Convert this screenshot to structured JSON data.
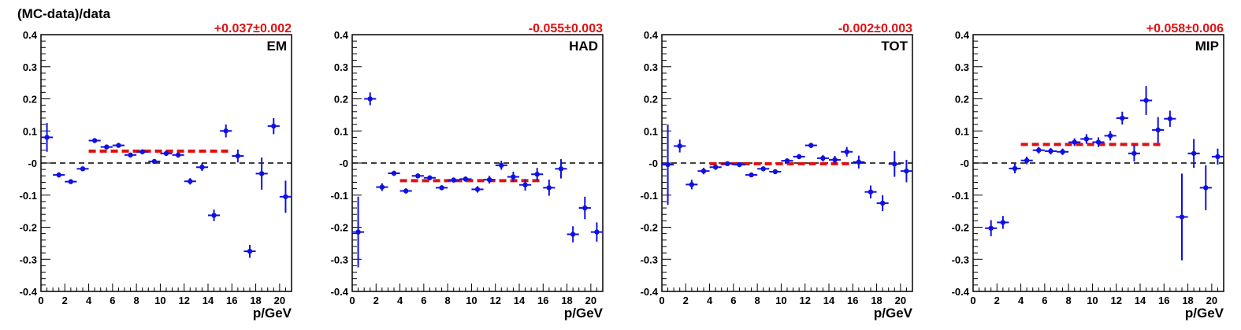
{
  "figure": {
    "ylabel": "(MC-data)/data",
    "xlabel": "p/GeV"
  },
  "colors": {
    "points": "#1010e0",
    "fit": "#e01010",
    "reference": "#000000",
    "fit_label": "#e01010"
  },
  "chart_data": [
    {
      "type": "scatter",
      "panel_label": "EM",
      "fit_label": "+0.037±0.002",
      "fit_value": 0.037,
      "fit_x_range": [
        4,
        16
      ],
      "xlabel": "p/GeV",
      "ylabel": "(MC-data)/data",
      "xlim": [
        0,
        21
      ],
      "ylim": [
        -0.4,
        0.4
      ],
      "x_ticks": [
        "0",
        "2",
        "4",
        "6",
        "8",
        "10",
        "12",
        "14",
        "16",
        "18",
        "20"
      ],
      "y_ticks": [
        "-0.4",
        "-0.3",
        "-0.2",
        "-0.1",
        "-0",
        "0.1",
        "0.2",
        "0.3",
        "0.4"
      ],
      "series": [
        {
          "x": [
            0.5,
            1.5,
            2.5,
            3.5,
            4.5,
            5.5,
            6.5,
            7.5,
            8.5,
            9.5,
            10.5,
            11.5,
            12.5,
            13.5,
            14.5,
            15.5,
            16.5,
            17.5,
            18.5,
            19.5,
            20.5
          ],
          "y": [
            0.08,
            -0.037,
            -0.058,
            -0.018,
            0.07,
            0.05,
            0.055,
            0.025,
            0.035,
            0.005,
            0.03,
            0.025,
            -0.057,
            -0.013,
            -0.163,
            0.1,
            0.022,
            -0.275,
            -0.033,
            0.115,
            -0.105
          ],
          "yerr": [
            0.045,
            0.008,
            0.006,
            0.006,
            0.006,
            0.006,
            0.006,
            0.006,
            0.006,
            0.006,
            0.008,
            0.008,
            0.01,
            0.012,
            0.018,
            0.02,
            0.02,
            0.02,
            0.05,
            0.025,
            0.05
          ]
        }
      ]
    },
    {
      "type": "scatter",
      "panel_label": "HAD",
      "fit_label": "-0.055±0.003",
      "fit_value": -0.055,
      "fit_x_range": [
        4,
        16
      ],
      "xlabel": "p/GeV",
      "ylabel": "",
      "xlim": [
        0,
        21
      ],
      "ylim": [
        -0.4,
        0.4
      ],
      "x_ticks": [
        "0",
        "2",
        "4",
        "6",
        "8",
        "10",
        "12",
        "14",
        "16",
        "18",
        "20"
      ],
      "y_ticks": [
        "-0.4",
        "-0.3",
        "-0.2",
        "-0.1",
        "-0",
        "0.1",
        "0.2",
        "0.3",
        "0.4"
      ],
      "series": [
        {
          "x": [
            0.5,
            1.5,
            2.5,
            3.5,
            4.5,
            5.5,
            6.5,
            7.5,
            8.5,
            9.5,
            10.5,
            11.5,
            12.5,
            13.5,
            14.5,
            15.5,
            16.5,
            17.5,
            18.5,
            19.5,
            20.5
          ],
          "y": [
            -0.215,
            0.2,
            -0.075,
            -0.032,
            -0.087,
            -0.04,
            -0.046,
            -0.077,
            -0.053,
            -0.05,
            -0.082,
            -0.052,
            -0.007,
            -0.043,
            -0.068,
            -0.035,
            -0.077,
            -0.018,
            -0.222,
            -0.14,
            -0.215
          ],
          "yerr": [
            0.11,
            0.02,
            0.012,
            0.008,
            0.008,
            0.007,
            0.007,
            0.007,
            0.008,
            0.008,
            0.01,
            0.012,
            0.014,
            0.016,
            0.018,
            0.02,
            0.025,
            0.03,
            0.025,
            0.035,
            0.03
          ]
        }
      ]
    },
    {
      "type": "scatter",
      "panel_label": "TOT",
      "fit_label": "-0.002±0.003",
      "fit_value": -0.002,
      "fit_x_range": [
        4,
        16
      ],
      "xlabel": "p/GeV",
      "ylabel": "",
      "xlim": [
        0,
        21
      ],
      "ylim": [
        -0.4,
        0.4
      ],
      "x_ticks": [
        "0",
        "2",
        "4",
        "6",
        "8",
        "10",
        "12",
        "14",
        "16",
        "18",
        "20"
      ],
      "y_ticks": [
        "-0.4",
        "-0.3",
        "-0.2",
        "-0.1",
        "-0",
        "0.1",
        "0.2",
        "0.3",
        "0.4"
      ],
      "series": [
        {
          "x": [
            0.5,
            1.5,
            2.5,
            3.5,
            4.5,
            5.5,
            6.5,
            7.5,
            8.5,
            9.5,
            10.5,
            11.5,
            12.5,
            13.5,
            14.5,
            15.5,
            16.5,
            17.5,
            18.5,
            19.5,
            20.5
          ],
          "y": [
            -0.005,
            0.053,
            -0.067,
            -0.025,
            -0.013,
            -0.002,
            -0.005,
            -0.037,
            -0.018,
            -0.027,
            0.007,
            0.02,
            0.055,
            0.015,
            0.01,
            0.035,
            0.003,
            -0.09,
            -0.125,
            -0.003,
            -0.025
          ],
          "yerr": [
            0.125,
            0.02,
            0.015,
            0.01,
            0.008,
            0.006,
            0.006,
            0.006,
            0.006,
            0.006,
            0.007,
            0.008,
            0.008,
            0.01,
            0.012,
            0.015,
            0.02,
            0.02,
            0.025,
            0.04,
            0.035
          ]
        }
      ]
    },
    {
      "type": "scatter",
      "panel_label": "MIP",
      "fit_label": "+0.058±0.006",
      "fit_value": 0.058,
      "fit_x_range": [
        4,
        16
      ],
      "xlabel": "p/GeV",
      "ylabel": "",
      "xlim": [
        0,
        21
      ],
      "ylim": [
        -0.4,
        0.4
      ],
      "x_ticks": [
        "0",
        "2",
        "4",
        "6",
        "8",
        "10",
        "12",
        "14",
        "16",
        "18",
        "20"
      ],
      "y_ticks": [
        "-0.4",
        "-0.3",
        "-0.2",
        "-0.1",
        "-0",
        "0.1",
        "0.2",
        "0.3",
        "0.4"
      ],
      "series": [
        {
          "x": [
            1.5,
            2.5,
            3.5,
            4.5,
            5.5,
            6.5,
            7.5,
            8.5,
            9.5,
            10.5,
            11.5,
            12.5,
            13.5,
            14.5,
            15.5,
            16.5,
            17.5,
            18.5,
            19.5,
            20.5
          ],
          "y": [
            -0.203,
            -0.185,
            -0.017,
            0.008,
            0.04,
            0.037,
            0.035,
            0.065,
            0.075,
            0.065,
            0.085,
            0.14,
            0.03,
            0.195,
            0.103,
            0.138,
            -0.168,
            0.03,
            -0.077,
            0.02
          ],
          "yerr": [
            0.025,
            0.02,
            0.015,
            0.012,
            0.01,
            0.01,
            0.01,
            0.012,
            0.015,
            0.015,
            0.015,
            0.02,
            0.025,
            0.045,
            0.04,
            0.025,
            0.135,
            0.045,
            0.07,
            0.025
          ]
        }
      ]
    }
  ]
}
